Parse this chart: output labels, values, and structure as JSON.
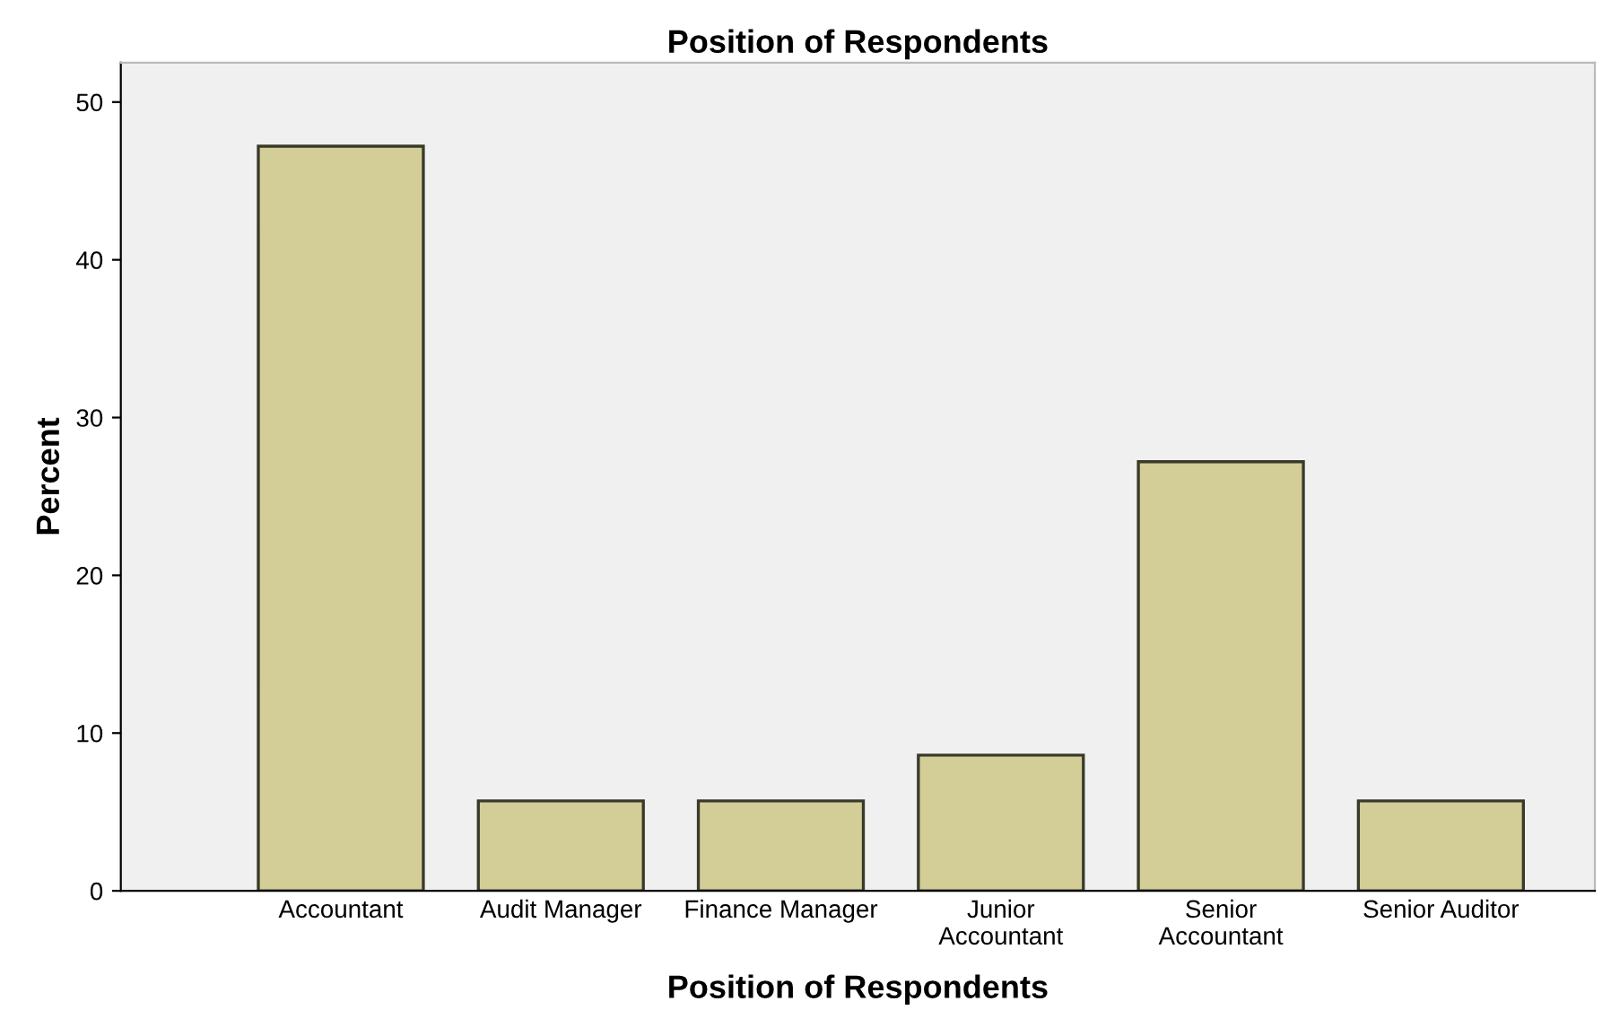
{
  "chart_data": {
    "type": "bar",
    "title": "Position of Respondents",
    "xlabel": "Position of Respondents",
    "ylabel": "Percent",
    "categories": [
      "Accountant",
      "Audit Manager",
      "Finance Manager",
      "Junior\nAccountant",
      "Senior\nAccountant",
      "Senior Auditor"
    ],
    "values": [
      47.2,
      5.7,
      5.7,
      8.6,
      27.2,
      5.7
    ],
    "color": "#d3ce97",
    "ylim": [
      0,
      52.5
    ],
    "yticks": [
      0,
      10,
      20,
      30,
      40,
      50
    ],
    "grid": false
  }
}
